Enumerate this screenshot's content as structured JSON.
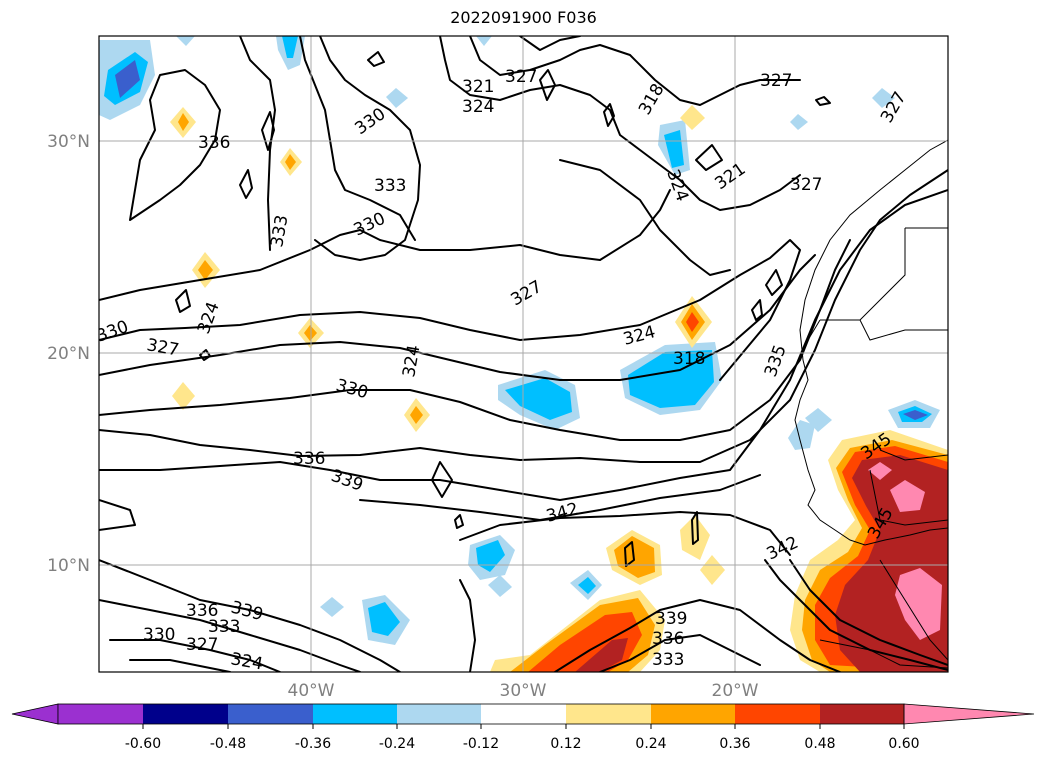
{
  "title": "2022091900 F036",
  "lat_labels": [
    "30°N",
    "20°N",
    "10°N"
  ],
  "lon_labels": [
    "40°W",
    "30°W",
    "20°W"
  ],
  "contour_labels": [
    "321",
    "327",
    "324",
    "327",
    "330",
    "318",
    "336",
    "333",
    "333",
    "330",
    "324",
    "327",
    "321",
    "330",
    "324",
    "324",
    "330",
    "327",
    "324",
    "318",
    "335",
    "336",
    "339",
    "342",
    "339",
    "336",
    "333",
    "345",
    "345",
    "342",
    "327",
    "336",
    "330",
    "327",
    "333",
    "339",
    "324"
  ],
  "colorbar": {
    "ticks": [
      "-0.60",
      "-0.48",
      "-0.36",
      "-0.24",
      "-0.12",
      "0.12",
      "0.24",
      "0.36",
      "0.48",
      "0.60"
    ],
    "colors": [
      "#9b30d0",
      "#00008b",
      "#3a5fcd",
      "#00bfff",
      "#add8f0",
      "#ffffff",
      "#ffe68c",
      "#ffa500",
      "#ff4500",
      "#b22222",
      "#ff88b0"
    ]
  }
}
